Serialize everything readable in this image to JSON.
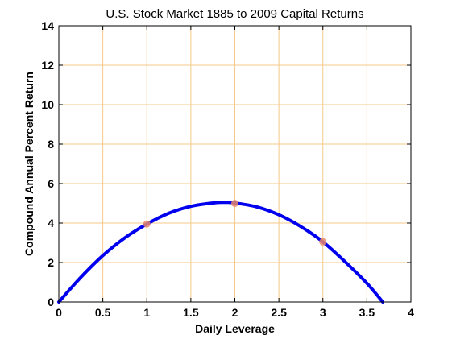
{
  "chart_data": {
    "type": "line",
    "title": "U.S. Stock Market 1885 to 2009 Capital Returns",
    "xlabel": "Daily Leverage",
    "ylabel": "Compound Annual Percent Return",
    "xlim": [
      0,
      4
    ],
    "ylim": [
      0,
      14
    ],
    "xticks": [
      0,
      0.5,
      1,
      1.5,
      2,
      2.5,
      3,
      3.5,
      4
    ],
    "xtick_labels": [
      "0",
      "0.5",
      "1",
      "1.5",
      "2",
      "2.5",
      "3",
      "3.5",
      "4"
    ],
    "yticks": [
      0,
      2,
      4,
      6,
      8,
      10,
      12,
      14
    ],
    "ytick_labels": [
      "0",
      "2",
      "4",
      "6",
      "8",
      "10",
      "12",
      "14"
    ],
    "grid": true,
    "legend": "none",
    "series": [
      {
        "kind": "line",
        "color": "#0000ee",
        "x": [
          0,
          0.25,
          0.5,
          0.75,
          1.0,
          1.25,
          1.5,
          1.75,
          1.88,
          2.0,
          2.25,
          2.5,
          2.75,
          3.0,
          3.25,
          3.5,
          3.68
        ],
        "y": [
          0,
          1.25,
          2.35,
          3.25,
          3.95,
          4.5,
          4.85,
          5.02,
          5.05,
          5.02,
          4.82,
          4.42,
          3.82,
          3.05,
          2.05,
          0.95,
          0
        ]
      },
      {
        "kind": "scatter",
        "color": "#e8896b",
        "x": [
          1,
          2,
          3
        ],
        "y": [
          3.95,
          5.0,
          3.05
        ]
      }
    ],
    "colors": {
      "grid": "#f5c987",
      "axes": "#000000",
      "background": "#ffffff"
    }
  }
}
